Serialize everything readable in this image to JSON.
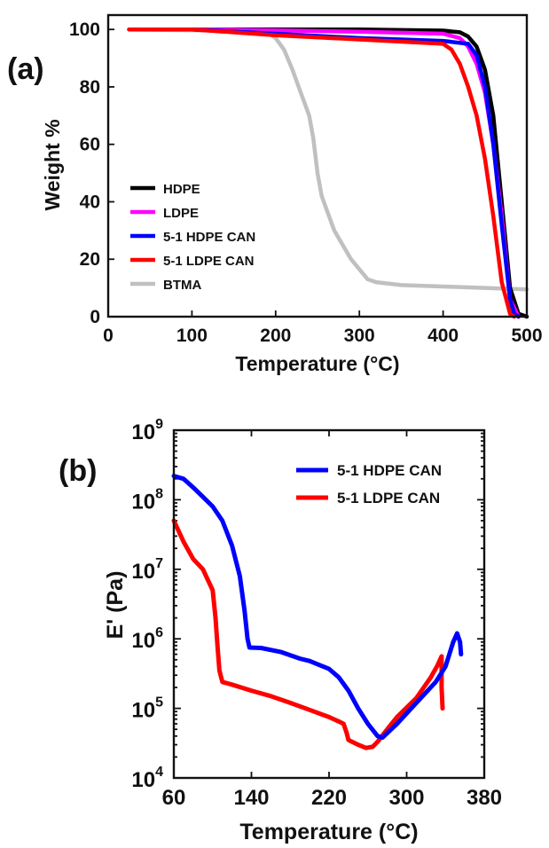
{
  "panels": {
    "a": {
      "label": "(a)"
    },
    "b": {
      "label": "(b)"
    }
  },
  "chart_data": [
    {
      "type": "line",
      "panel": "(a)",
      "title": "",
      "xlabel": "Temperature (°C)",
      "ylabel": "Weight %",
      "xlim": [
        0,
        500
      ],
      "ylim": [
        0,
        105
      ],
      "xticks": [
        0,
        100,
        200,
        300,
        400,
        500
      ],
      "yticks": [
        0,
        20,
        40,
        60,
        80,
        100
      ],
      "legend_position": "bottom-left",
      "series": [
        {
          "name": "HDPE",
          "color": "#000000",
          "x": [
            25,
            100,
            200,
            300,
            400,
            420,
            430,
            440,
            450,
            460,
            470,
            480,
            490,
            500
          ],
          "y": [
            100,
            100,
            100,
            100,
            99.6,
            99,
            97.5,
            94,
            86,
            70,
            40,
            10,
            1,
            0
          ]
        },
        {
          "name": "LDPE",
          "color": "#ff00ff",
          "x": [
            25,
            100,
            200,
            300,
            400,
            420,
            430,
            440,
            450,
            460,
            470,
            480,
            490
          ],
          "y": [
            100,
            100,
            99.7,
            99.2,
            98.5,
            97,
            94,
            88,
            78,
            60,
            35,
            6,
            0
          ]
        },
        {
          "name": "5-1 HDPE CAN",
          "color": "#0000ff",
          "x": [
            25,
            100,
            200,
            300,
            400,
            430,
            440,
            450,
            460,
            470,
            480,
            485,
            490
          ],
          "y": [
            100,
            100,
            98.5,
            97,
            96,
            95,
            91,
            80,
            60,
            32,
            6,
            1,
            0
          ]
        },
        {
          "name": "5-1 LDPE CAN",
          "color": "#ff0000",
          "x": [
            25,
            100,
            200,
            300,
            400,
            410,
            420,
            430,
            440,
            450,
            460,
            470,
            480,
            485
          ],
          "y": [
            100,
            100,
            98,
            96.5,
            95,
            93,
            88,
            80,
            70,
            55,
            35,
            12,
            1,
            0
          ]
        },
        {
          "name": "BTMA",
          "color": "#c0c0c0",
          "x": [
            25,
            150,
            190,
            200,
            210,
            220,
            230,
            240,
            245,
            250,
            255,
            270,
            290,
            310,
            320,
            350,
            400,
            450,
            500
          ],
          "y": [
            100,
            99.5,
            99,
            97,
            93,
            86,
            78,
            70,
            62,
            50,
            42,
            30,
            20,
            13,
            12,
            11,
            10.5,
            10,
            9.5
          ]
        }
      ]
    },
    {
      "type": "line",
      "panel": "(b)",
      "title": "",
      "xlabel": "Temperature (°C)",
      "ylabel": "E' (Pa)",
      "yscale": "log",
      "xlim": [
        60,
        380
      ],
      "ylim": [
        10000,
        1000000000
      ],
      "xticks": [
        60,
        140,
        220,
        300,
        380
      ],
      "yticks": [
        10000,
        100000,
        1000000,
        10000000,
        100000000,
        1000000000
      ],
      "ytick_labels": [
        {
          "base": "10",
          "exp": "4"
        },
        {
          "base": "10",
          "exp": "5"
        },
        {
          "base": "10",
          "exp": "6"
        },
        {
          "base": "10",
          "exp": "7"
        },
        {
          "base": "10",
          "exp": "8"
        },
        {
          "base": "10",
          "exp": "9"
        }
      ],
      "legend_position": "top-right",
      "series": [
        {
          "name": "5-1 HDPE CAN",
          "color": "#0000ff",
          "x": [
            60,
            70,
            80,
            90,
            100,
            110,
            120,
            128,
            133,
            136,
            138,
            150,
            170,
            190,
            200,
            210,
            220,
            230,
            240,
            250,
            260,
            270,
            275,
            290,
            310,
            330,
            340,
            348,
            352,
            355,
            356
          ],
          "y": [
            220000000,
            200000000,
            150000000,
            110000000,
            80000000,
            50000000,
            22000000,
            8000000,
            2500000,
            1000000,
            750000,
            740000,
            650000,
            520000,
            480000,
            420000,
            370000,
            280000,
            180000,
            100000,
            60000,
            40000,
            38000,
            60000,
            120000,
            240000,
            400000,
            900000,
            1200000,
            900000,
            600000
          ]
        },
        {
          "name": "5-1 LDPE CAN",
          "color": "#ff0000",
          "x": [
            60,
            70,
            80,
            90,
            100,
            103,
            105,
            107,
            110,
            120,
            140,
            160,
            180,
            200,
            220,
            230,
            235,
            238,
            240,
            250,
            258,
            265,
            270,
            280,
            290,
            310,
            325,
            332,
            336,
            336,
            337
          ],
          "y": [
            50000000,
            25000000,
            14000000,
            10000000,
            5000000,
            2000000,
            800000,
            350000,
            240000,
            220000,
            180000,
            150000,
            120000,
            95000,
            75000,
            65000,
            60000,
            45000,
            35000,
            30000,
            27000,
            28000,
            33000,
            50000,
            75000,
            140000,
            280000,
            420000,
            560000,
            200000,
            100000
          ]
        }
      ]
    }
  ]
}
